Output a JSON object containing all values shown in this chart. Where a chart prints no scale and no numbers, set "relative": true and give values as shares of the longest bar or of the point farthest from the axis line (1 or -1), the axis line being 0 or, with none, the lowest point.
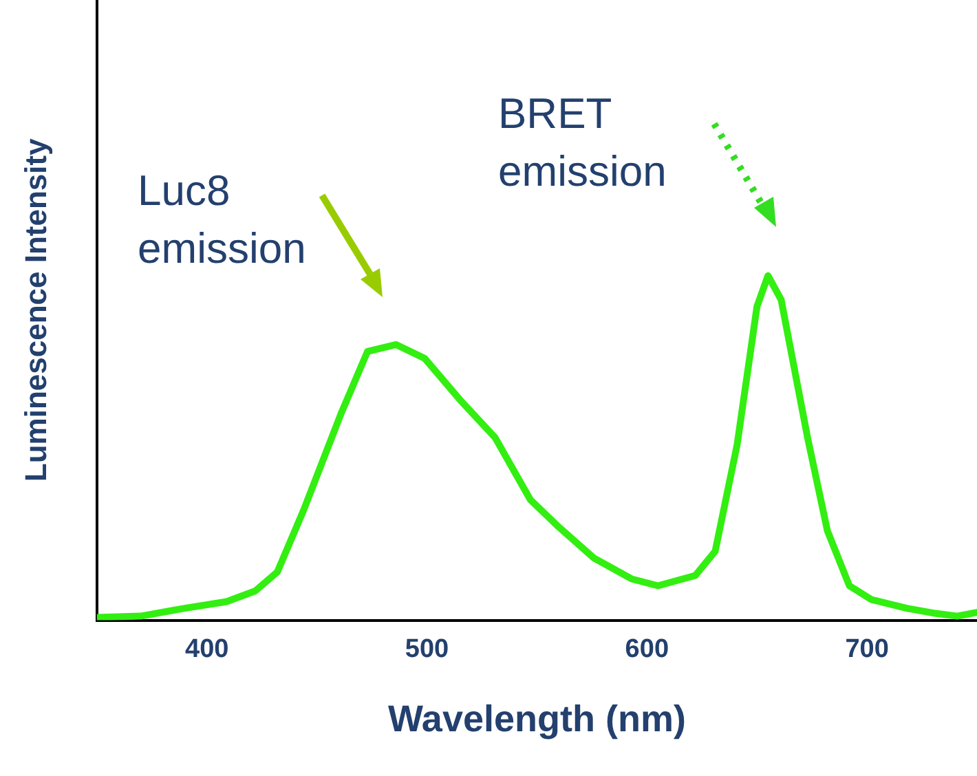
{
  "chart_data": {
    "type": "line",
    "relative": true,
    "xlabel": "Wavelength (nm)",
    "ylabel": "Luminescence Intensity",
    "xlim": [
      350,
      750
    ],
    "xticks": [
      400,
      500,
      600,
      700
    ],
    "grid": false,
    "legend": false,
    "marker": "none",
    "line_style": "solid",
    "annotations": [
      "Luc8 emission",
      "BRET emission"
    ],
    "series": [
      {
        "color": "#33ee11",
        "x": [
          350,
          370,
          390,
          409,
          422,
          432,
          444,
          461,
          473,
          486,
          499,
          515,
          531,
          547,
          560,
          576,
          593,
          605,
          622,
          631,
          641,
          650,
          655,
          661,
          673,
          682,
          692,
          702,
          718,
          731,
          741,
          750
        ],
        "values": [
          0.008,
          0.012,
          0.035,
          0.054,
          0.085,
          0.14,
          0.32,
          0.6,
          0.78,
          0.8,
          0.76,
          0.64,
          0.53,
          0.35,
          0.27,
          0.18,
          0.12,
          0.1,
          0.13,
          0.2,
          0.51,
          0.91,
          1.0,
          0.93,
          0.53,
          0.26,
          0.1,
          0.06,
          0.035,
          0.02,
          0.012,
          0.023
        ]
      }
    ]
  }
}
